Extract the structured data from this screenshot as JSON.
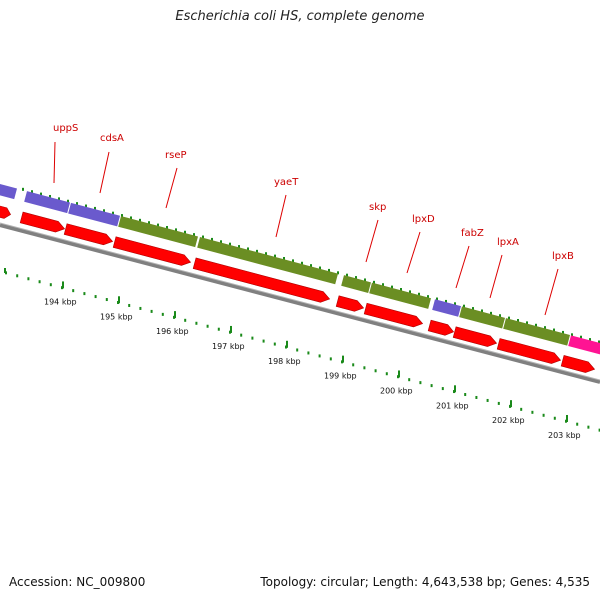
{
  "title": "Escherichia coli HS, complete genome",
  "footer": {
    "accession": "Accession: NC_009800",
    "summary": "Topology: circular; Length: 4,643,538 bp; Genes: 4,535"
  },
  "colors": {
    "orf_arrow": "#ff0000",
    "cds_green": "#6b8e23",
    "cds_purple": "#6a5acd",
    "cds_pink": "#ff1493",
    "backbone": "#808080",
    "tick_green": "#1a8a1a",
    "gene_label": "#cc0000"
  },
  "gene_labels": [
    "uppS",
    "cdsA",
    "rseP",
    "yaeT",
    "skp",
    "lpxD",
    "fabZ",
    "lpxA",
    "lpxB"
  ],
  "kbp_labels": [
    "194 kbp",
    "195 kbp",
    "196 kbp",
    "197 kbp",
    "198 kbp",
    "199 kbp",
    "200 kbp",
    "201 kbp",
    "202 kbp",
    "203 kbp"
  ]
}
